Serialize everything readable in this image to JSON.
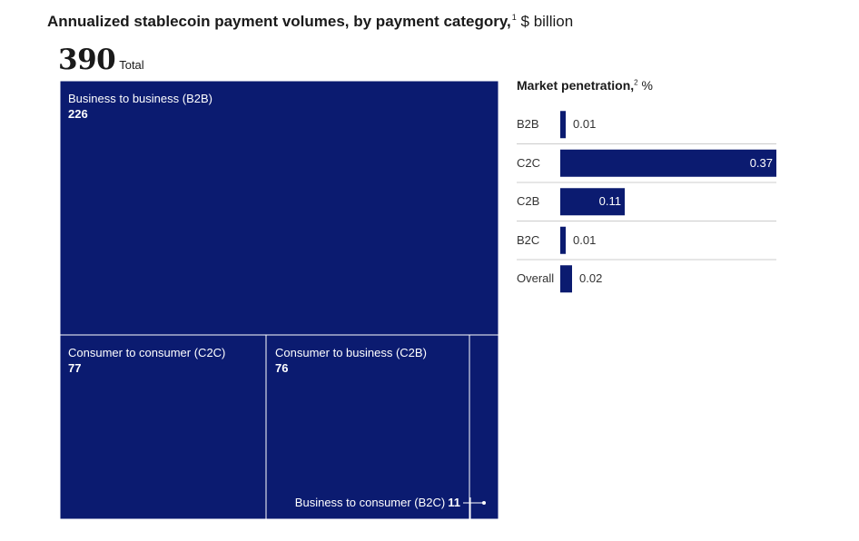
{
  "header": {
    "title": "Annualized stablecoin payment volumes, by payment category,",
    "footnote_mark": "1",
    "unit": "$ billion"
  },
  "total": {
    "value": "390",
    "label": "Total"
  },
  "colors": {
    "navy": "#0b1b70",
    "divider": "#cccccc"
  },
  "chart_data": [
    {
      "type": "treemap",
      "title": "Annualized stablecoin payment volumes, by payment category",
      "unit": "$ billion",
      "total": 390,
      "items": [
        {
          "name": "Business to business (B2B)",
          "value": 226,
          "label": "226"
        },
        {
          "name": "Consumer to consumer (C2C)",
          "value": 77,
          "label": "77"
        },
        {
          "name": "Consumer to business (C2B)",
          "value": 76,
          "label": "76"
        },
        {
          "name": "Business to consumer (B2C)",
          "value": 11,
          "label": "11"
        }
      ]
    },
    {
      "type": "bar",
      "orientation": "horizontal",
      "title": "Market penetration,",
      "footnote_mark": "2",
      "unit": "%",
      "categories": [
        "B2B",
        "C2C",
        "C2B",
        "B2C",
        "Overall"
      ],
      "values": [
        0.01,
        0.37,
        0.11,
        0.01,
        0.02
      ],
      "value_labels": [
        "0.01",
        "0.37",
        "0.11",
        "0.01",
        "0.02"
      ],
      "xlim": [
        0,
        0.37
      ]
    }
  ]
}
